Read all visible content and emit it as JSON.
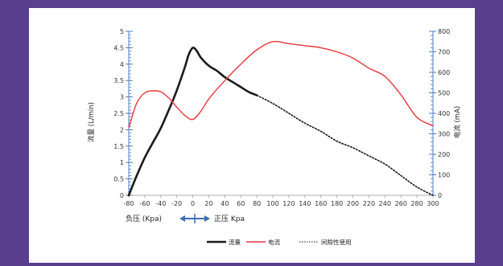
{
  "colors": {
    "background": "#5a3f8e",
    "panel": "#ffffff",
    "axis": "#4a7fc1",
    "flow": "#1a1a1a",
    "current": "#e8363b",
    "intermittent": "#1a1a1a",
    "arrow": "#3b6fb5"
  },
  "chart_data": {
    "type": "line",
    "title": "",
    "xlabel": "",
    "ylabel": "流量 (L/min)",
    "y2label": "电流 (mA)",
    "xlim": [
      -80,
      300
    ],
    "ylim": [
      0,
      5
    ],
    "y2lim": [
      0,
      800
    ],
    "xticks": [
      "-80",
      "-60",
      "-40",
      "-20",
      "0",
      "20",
      "40",
      "60",
      "80",
      "100",
      "120",
      "140",
      "160",
      "180",
      "200",
      "220",
      "240",
      "260",
      "280",
      "300"
    ],
    "yticks": [
      "0",
      "0.5",
      "1",
      "1.5",
      "2",
      "2.5",
      "3",
      "3.5",
      "4",
      "4.5",
      "5"
    ],
    "y2ticks": [
      "0",
      "100",
      "200",
      "300",
      "400",
      "500",
      "600",
      "700",
      "800"
    ],
    "series": [
      {
        "name": "流量",
        "axis": "left",
        "style": "solid",
        "x": [
          -80,
          -70,
          -60,
          -50,
          -40,
          -30,
          -20,
          -10,
          -5,
          0,
          5,
          10,
          20,
          30,
          40,
          50,
          60,
          70,
          80
        ],
        "y": [
          0,
          0.6,
          1.15,
          1.6,
          2.05,
          2.6,
          3.2,
          3.9,
          4.3,
          4.5,
          4.4,
          4.2,
          3.95,
          3.8,
          3.6,
          3.45,
          3.3,
          3.15,
          3.05
        ]
      },
      {
        "name": "电流",
        "axis": "right",
        "style": "solid",
        "x": [
          -80,
          -70,
          -60,
          -50,
          -40,
          -30,
          -20,
          -10,
          0,
          10,
          20,
          40,
          60,
          80,
          100,
          120,
          140,
          160,
          180,
          200,
          220,
          240,
          260,
          280,
          300
        ],
        "y": [
          330,
          450,
          500,
          510,
          505,
          475,
          430,
          390,
          370,
          410,
          470,
          560,
          640,
          710,
          750,
          740,
          730,
          720,
          700,
          670,
          620,
          580,
          490,
          380,
          340
        ]
      },
      {
        "name": "间隙性使用",
        "axis": "left",
        "style": "dotted",
        "x": [
          80,
          100,
          120,
          140,
          160,
          180,
          200,
          220,
          240,
          260,
          280,
          300
        ],
        "y": [
          3.05,
          2.8,
          2.5,
          2.2,
          1.95,
          1.65,
          1.45,
          1.2,
          0.95,
          0.6,
          0.25,
          0
        ]
      }
    ],
    "legend": {
      "placement": "bottom-center",
      "entries": [
        "流量",
        "电流",
        "间隙性使用"
      ]
    },
    "annotations": {
      "negative": "负压 (Kpa)",
      "positive": "正压 Kpa"
    },
    "grid": false
  }
}
